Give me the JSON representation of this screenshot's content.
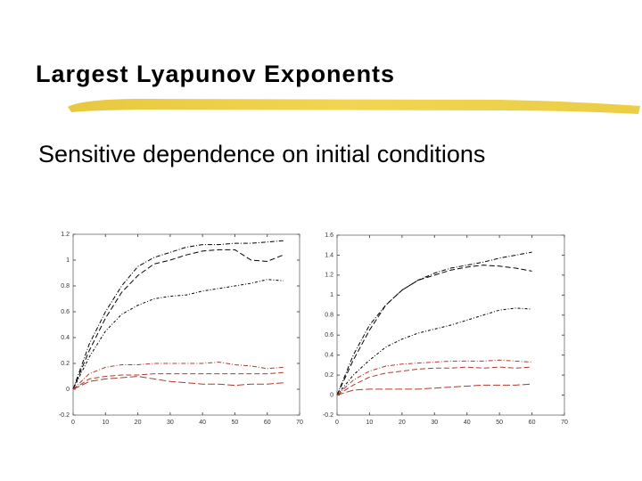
{
  "slide": {
    "title": "Largest Lyapunov Exponents",
    "subtitle": "Sensitive dependence on initial conditions"
  },
  "chart_data": [
    {
      "type": "line",
      "x": [
        0,
        5,
        10,
        15,
        20,
        25,
        30,
        35,
        40,
        45,
        50,
        55,
        60,
        65
      ],
      "xlim": [
        0,
        70
      ],
      "xticks": [
        0,
        10,
        20,
        30,
        40,
        50,
        60,
        70
      ],
      "ylim": [
        -0.2,
        1.2
      ],
      "yticks": [
        -0.2,
        0,
        0.2,
        0.4,
        0.6,
        0.8,
        1,
        1.2
      ],
      "series": [
        {
          "color": "#000000",
          "values": [
            0,
            0.35,
            0.6,
            0.8,
            0.95,
            1.02,
            1.06,
            1.1,
            1.12,
            1.12,
            1.13,
            1.13,
            1.14,
            1.15
          ]
        },
        {
          "color": "#000000",
          "values": [
            0,
            0.3,
            0.55,
            0.75,
            0.88,
            0.97,
            1.0,
            1.04,
            1.07,
            1.08,
            1.08,
            1.0,
            0.99,
            1.04
          ]
        },
        {
          "color": "#000000",
          "values": [
            0,
            0.25,
            0.45,
            0.58,
            0.65,
            0.7,
            0.72,
            0.73,
            0.76,
            0.78,
            0.8,
            0.82,
            0.85,
            0.84
          ]
        },
        {
          "color": "#b03a2e",
          "values": [
            0,
            0.12,
            0.17,
            0.19,
            0.19,
            0.2,
            0.2,
            0.2,
            0.2,
            0.21,
            0.19,
            0.18,
            0.16,
            0.17
          ]
        },
        {
          "color": "#b03a2e",
          "values": [
            0,
            0.08,
            0.1,
            0.11,
            0.11,
            0.12,
            0.12,
            0.12,
            0.12,
            0.12,
            0.12,
            0.12,
            0.12,
            0.13
          ]
        },
        {
          "color": "#b03a2e",
          "values": [
            0,
            0.06,
            0.08,
            0.09,
            0.1,
            0.08,
            0.06,
            0.05,
            0.04,
            0.04,
            0.03,
            0.04,
            0.04,
            0.05
          ]
        }
      ]
    },
    {
      "type": "line",
      "x": [
        0,
        5,
        10,
        15,
        20,
        25,
        30,
        35,
        40,
        45,
        50,
        55,
        60
      ],
      "xlim": [
        0,
        70
      ],
      "xticks": [
        0,
        10,
        20,
        30,
        40,
        50,
        60,
        70
      ],
      "ylim": [
        -0.2,
        1.6
      ],
      "yticks": [
        -0.2,
        0,
        0.2,
        0.4,
        0.6,
        0.8,
        1,
        1.2,
        1.4,
        1.6
      ],
      "series": [
        {
          "color": "#000000",
          "values": [
            0,
            0.4,
            0.7,
            0.9,
            1.05,
            1.15,
            1.22,
            1.27,
            1.3,
            1.33,
            1.37,
            1.4,
            1.43
          ]
        },
        {
          "color": "#000000",
          "values": [
            0,
            0.35,
            0.65,
            0.9,
            1.05,
            1.15,
            1.2,
            1.25,
            1.28,
            1.3,
            1.29,
            1.27,
            1.24
          ]
        },
        {
          "color": "#000000",
          "values": [
            0,
            0.2,
            0.35,
            0.48,
            0.56,
            0.62,
            0.66,
            0.7,
            0.75,
            0.8,
            0.85,
            0.87,
            0.86
          ]
        },
        {
          "color": "#b03a2e",
          "values": [
            0,
            0.15,
            0.24,
            0.29,
            0.31,
            0.32,
            0.33,
            0.34,
            0.34,
            0.34,
            0.35,
            0.34,
            0.33
          ]
        },
        {
          "color": "#b03a2e",
          "values": [
            0,
            0.1,
            0.18,
            0.22,
            0.24,
            0.26,
            0.27,
            0.27,
            0.28,
            0.27,
            0.28,
            0.27,
            0.28
          ]
        },
        {
          "color": "#b03a2e",
          "values": [
            0,
            0.05,
            0.06,
            0.06,
            0.06,
            0.06,
            0.07,
            0.08,
            0.09,
            0.1,
            0.1,
            0.1,
            0.11
          ]
        }
      ]
    }
  ]
}
